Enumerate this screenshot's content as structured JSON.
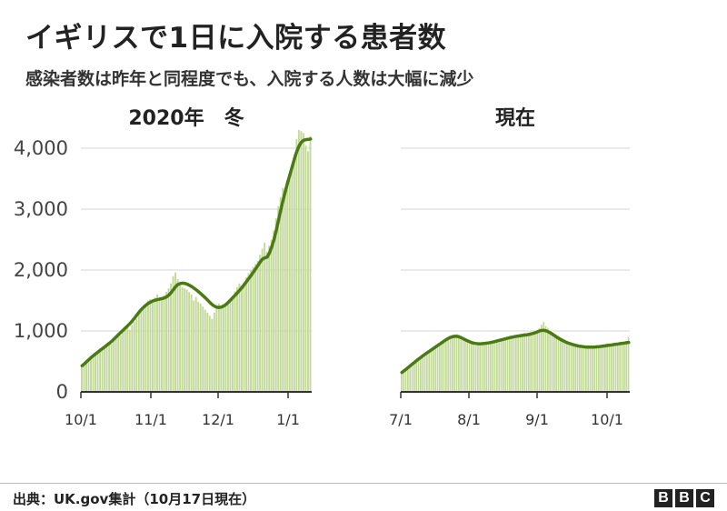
{
  "title": "イギリスで1日に入院する患者数",
  "subtitle": "感染者数は昨年と同程度でも、入院する人数は大幅に減少",
  "source": "出典：UK.gov集計（10月17日現在）",
  "logo": [
    "B",
    "B",
    "C"
  ],
  "colors": {
    "bar": "#c3d99a",
    "line": "#4a7a12",
    "grid": "#d6d6d6",
    "axis": "#333333"
  },
  "chart_data": [
    {
      "type": "bar",
      "title": "2020年　冬",
      "ylim": [
        0,
        4400
      ],
      "yticks": [
        0,
        1000,
        2000,
        3000,
        4000
      ],
      "ytick_labels": [
        "0",
        "1,000",
        "2,000",
        "3,000",
        "4,000"
      ],
      "x_start": "2020-10-01",
      "x_end": "2021-01-10",
      "xtick_labels": [
        "10/1",
        "11/1",
        "12/1",
        "1/1"
      ],
      "series": [
        {
          "kind": "bar",
          "description_en": "daily admissions",
          "values": [
            420,
            450,
            490,
            530,
            570,
            560,
            620,
            650,
            700,
            680,
            720,
            760,
            800,
            790,
            840,
            900,
            950,
            930,
            990,
            1030,
            1050,
            1020,
            1100,
            1150,
            1200,
            1280,
            1350,
            1400,
            1420,
            1500,
            1520,
            1480,
            1550,
            1600,
            1530,
            1520,
            1580,
            1640,
            1700,
            1780,
            1900,
            1960,
            1850,
            1790,
            1720,
            1700,
            1680,
            1640,
            1600,
            1500,
            1560,
            1480,
            1450,
            1400,
            1350,
            1300,
            1250,
            1200,
            1300,
            1380,
            1450,
            1420,
            1400,
            1430,
            1460,
            1520,
            1580,
            1650,
            1720,
            1780,
            1750,
            1800,
            1880,
            1950,
            2000,
            2050,
            2100,
            2150,
            2250,
            2350,
            2450,
            2300,
            2400,
            2500,
            2650,
            2850,
            3050,
            3200,
            3350,
            3250,
            3450,
            3550,
            3700,
            3900,
            4150,
            4300,
            4280,
            4250,
            4050,
            3950,
            4200
          ]
        },
        {
          "kind": "line",
          "description_en": "7-day average",
          "values": [
            430,
            460,
            495,
            530,
            565,
            595,
            625,
            655,
            685,
            712,
            740,
            770,
            800,
            832,
            868,
            905,
            942,
            978,
            1014,
            1050,
            1086,
            1124,
            1165,
            1212,
            1262,
            1310,
            1354,
            1392,
            1425,
            1453,
            1475,
            1492,
            1504,
            1514,
            1524,
            1532,
            1542,
            1560,
            1590,
            1630,
            1680,
            1730,
            1765,
            1780,
            1785,
            1780,
            1768,
            1750,
            1728,
            1702,
            1674,
            1644,
            1612,
            1578,
            1542,
            1504,
            1466,
            1432,
            1406,
            1390,
            1386,
            1392,
            1410,
            1436,
            1470,
            1508,
            1548,
            1588,
            1628,
            1670,
            1714,
            1762,
            1812,
            1862,
            1914,
            1968,
            2022,
            2078,
            2135,
            2180,
            2200,
            2212,
            2280,
            2380,
            2500,
            2650,
            2820,
            2990,
            3150,
            3300,
            3440,
            3570,
            3700,
            3830,
            3950,
            4040,
            4100,
            4130,
            4140,
            4145,
            4150
          ]
        }
      ]
    },
    {
      "type": "bar",
      "title": "現在",
      "ylim": [
        0,
        4400
      ],
      "yticks": [
        0,
        1000,
        2000,
        3000,
        4000
      ],
      "x_start": "2021-07-01",
      "x_end": "2021-10-17",
      "xtick_labels": [
        "7/1",
        "8/1",
        "9/1",
        "10/1"
      ],
      "series": [
        {
          "kind": "bar",
          "description_en": "daily admissions",
          "values": [
            300,
            330,
            360,
            400,
            420,
            450,
            480,
            500,
            530,
            560,
            580,
            600,
            630,
            660,
            680,
            700,
            720,
            750,
            780,
            800,
            820,
            850,
            880,
            900,
            910,
            930,
            950,
            940,
            920,
            890,
            860,
            830,
            800,
            790,
            780,
            760,
            770,
            780,
            790,
            800,
            810,
            800,
            820,
            830,
            840,
            860,
            870,
            880,
            860,
            870,
            890,
            900,
            910,
            920,
            930,
            940,
            950,
            960,
            970,
            950,
            960,
            970,
            980,
            990,
            1000,
            1050,
            1100,
            1150,
            1080,
            1050,
            1000,
            980,
            960,
            940,
            920,
            900,
            880,
            860,
            840,
            820,
            800,
            790,
            780,
            770,
            760,
            750,
            740,
            740,
            720,
            730,
            740,
            750,
            740,
            760,
            770,
            780,
            790,
            800,
            780,
            790,
            800,
            810,
            790,
            800,
            810,
            820,
            830,
            900
          ]
        },
        {
          "kind": "line",
          "description_en": "7-day average",
          "values": [
            320,
            345,
            372,
            400,
            428,
            456,
            484,
            512,
            540,
            566,
            592,
            616,
            640,
            664,
            688,
            712,
            736,
            760,
            784,
            808,
            832,
            855,
            876,
            893,
            905,
            912,
            912,
            906,
            894,
            878,
            860,
            843,
            827,
            813,
            802,
            795,
            791,
            790,
            791,
            794,
            798,
            803,
            809,
            816,
            824,
            833,
            842,
            851,
            860,
            869,
            878,
            887,
            895,
            902,
            909,
            915,
            920,
            925,
            930,
            935,
            941,
            948,
            956,
            966,
            978,
            992,
            1004,
            1010,
            1008,
            998,
            982,
            962,
            940,
            917,
            894,
            872,
            852,
            834,
            818,
            804,
            792,
            781,
            771,
            762,
            754,
            748,
            743,
            739,
            736,
            735,
            735,
            736,
            738,
            741,
            744,
            748,
            752,
            757,
            762,
            767,
            772,
            777,
            782,
            787,
            792,
            797,
            802,
            807,
            812
          ]
        }
      ]
    }
  ]
}
